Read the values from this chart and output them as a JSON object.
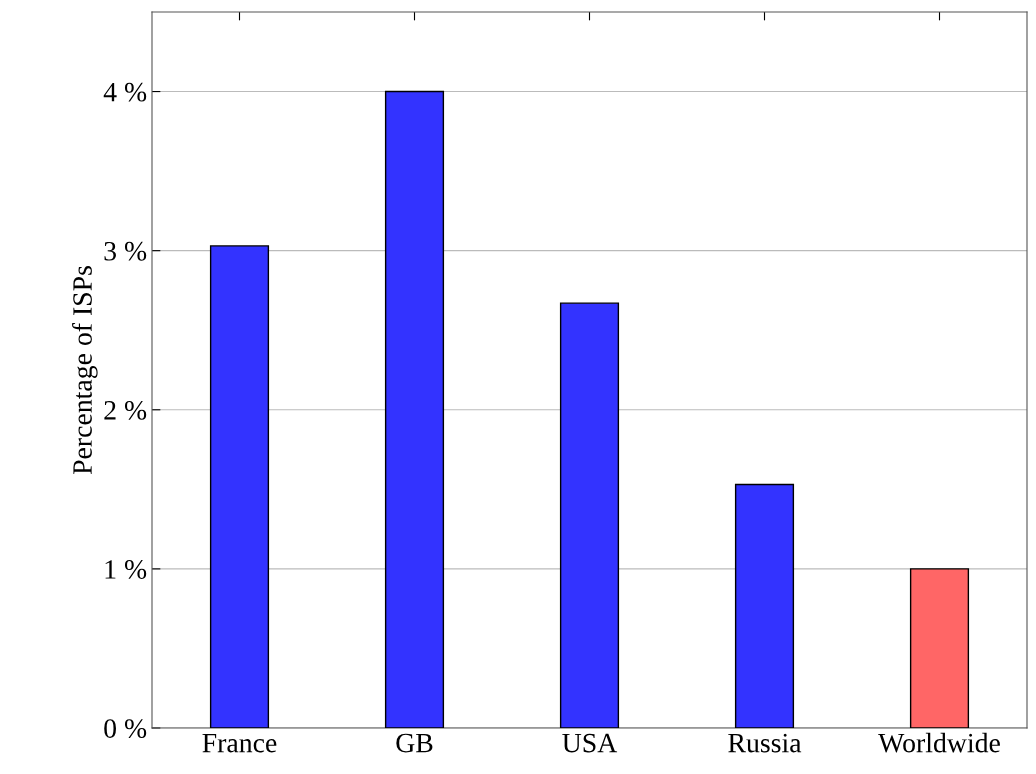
{
  "chart_data": {
    "type": "bar",
    "ylabel": "Percentage of ISPs",
    "categories": [
      "France",
      "GB",
      "USA",
      "Russia",
      "Worldwide"
    ],
    "values": [
      3.03,
      4.0,
      2.67,
      1.53,
      1.0
    ],
    "colors": [
      "#3333ff",
      "#3333ff",
      "#3333ff",
      "#3333ff",
      "#ff6666"
    ],
    "ylim": [
      0,
      4.5
    ],
    "yticks": [
      {
        "value": 0,
        "label": "0 %"
      },
      {
        "value": 1,
        "label": "1 %"
      },
      {
        "value": 2,
        "label": "2 %"
      },
      {
        "value": 3,
        "label": "3 %"
      },
      {
        "value": 4,
        "label": "4 %"
      }
    ],
    "grid": "y"
  }
}
